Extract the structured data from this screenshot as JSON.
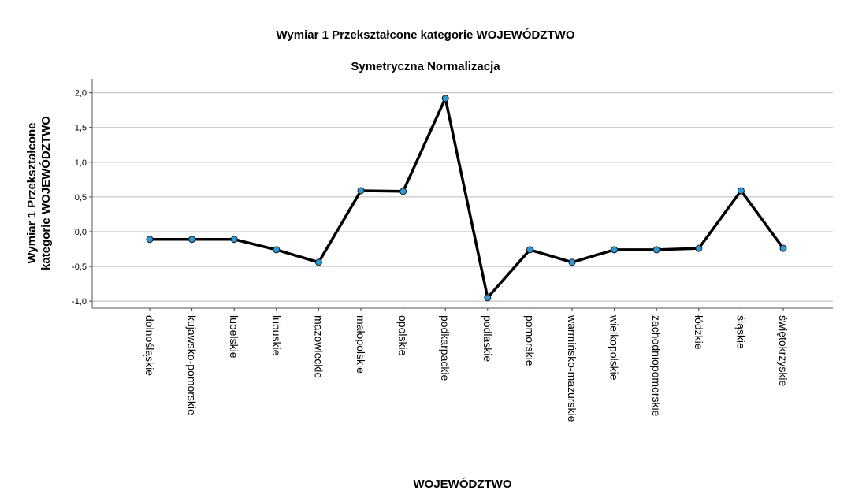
{
  "chart_data": {
    "type": "line",
    "title": "Wymiar 1 Przekształcone kategorie WOJEWÓDZTWO",
    "subtitle": "Symetryczna Normalizacja",
    "xlabel": "WOJEWÓDZTWO",
    "ylabel": [
      "Wymiar 1 Przekształcone",
      "kategorie WOJEWÓDZTWO"
    ],
    "ylim": [
      -1.1,
      2.2
    ],
    "yticks": [
      {
        "value": 2.0,
        "label": "2,0"
      },
      {
        "value": 1.5,
        "label": "1,5"
      },
      {
        "value": 1.0,
        "label": "1,0"
      },
      {
        "value": 0.5,
        "label": "0,5"
      },
      {
        "value": 0.0,
        "label": "0,0"
      },
      {
        "value": -0.5,
        "label": "-0,5"
      },
      {
        "value": -1.0,
        "label": "-1,0"
      }
    ],
    "grid": true,
    "categories": [
      "dolnośląskie",
      "kujawsko-pomorskie",
      "lubelskie",
      "lubuskie",
      "mazowieckie",
      "małopolskie",
      "opolskie",
      "podkarpackie",
      "podlaskie",
      "pomorskie",
      "warmińsko-mazurskie",
      "wielkopolskie",
      "zachodniopomorskie",
      "łódzkie",
      "śląskie",
      "świętokrzyskie"
    ],
    "values": [
      -0.11,
      -0.11,
      -0.11,
      -0.26,
      -0.44,
      0.59,
      0.58,
      1.92,
      -0.95,
      -0.26,
      -0.44,
      -0.26,
      -0.26,
      -0.24,
      0.59,
      -0.24
    ],
    "colors": {
      "line": "#000000",
      "marker": "#2a9bd8",
      "marker_edge": "#1a1a1a",
      "grid": "#c8c8c8"
    }
  }
}
